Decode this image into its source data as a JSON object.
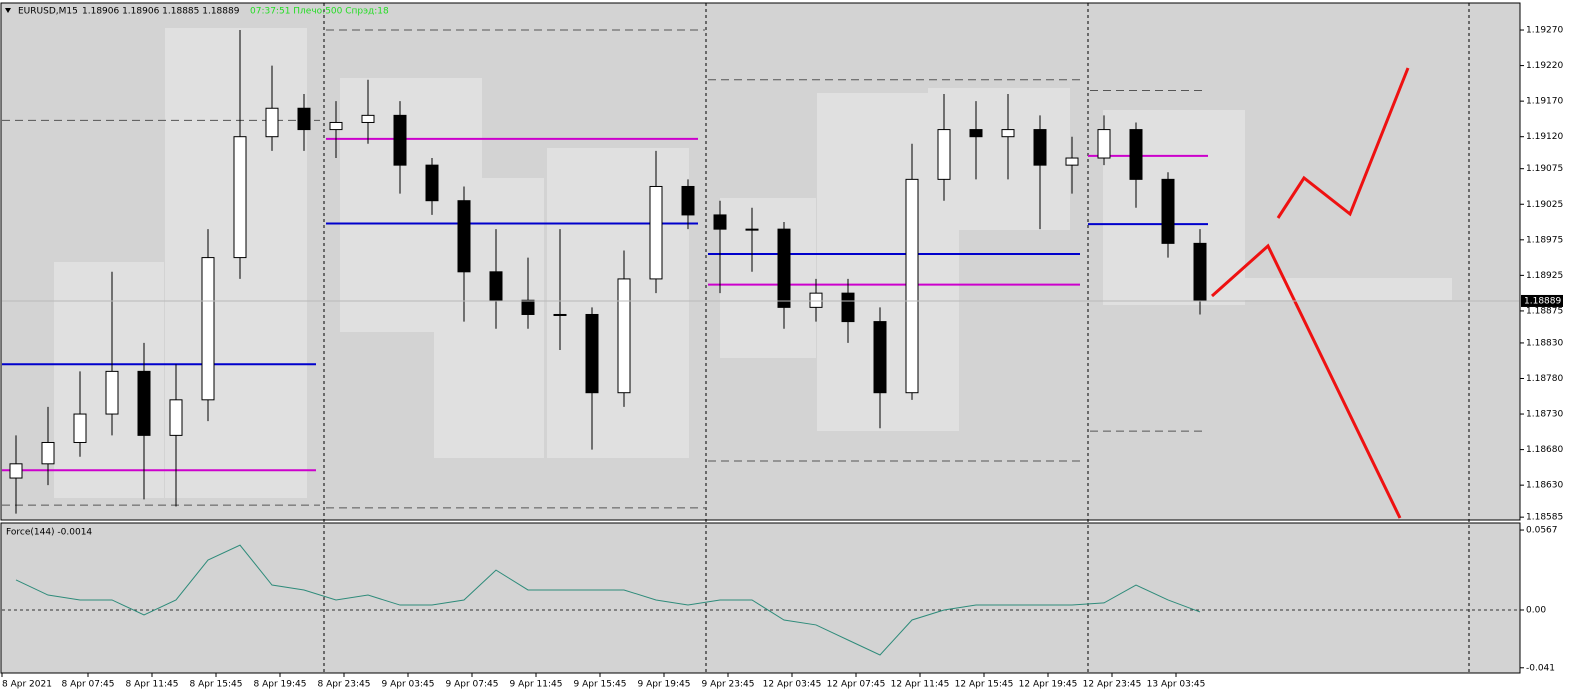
{
  "header": {
    "symbol": "EURUSD,M15",
    "quote": "1.18906 1.18906 1.18885 1.18889",
    "status": "07:37:51 Плечо:500 Спрэд:18"
  },
  "chart_data": [
    {
      "type": "candlestick",
      "open": [
        1.1864,
        1.1866,
        1.1869,
        1.1873,
        1.1879,
        1.187,
        1.1875,
        1.1895,
        1.1912,
        1.1916,
        1.1913,
        1.1914,
        1.1915,
        1.1908,
        1.1903,
        1.1893,
        1.1889,
        1.1887,
        1.1887,
        1.1876,
        1.1892,
        1.1905,
        1.1901,
        1.1899,
        1.1899,
        1.1888,
        1.189,
        1.1886,
        1.1876,
        1.1906,
        1.1913,
        1.1912,
        1.1913,
        1.1908,
        1.1909,
        1.1913,
        1.1906,
        1.1897
      ],
      "high": [
        1.187,
        1.1874,
        1.1879,
        1.1893,
        1.1883,
        1.188,
        1.1899,
        1.1927,
        1.1922,
        1.1918,
        1.1917,
        1.192,
        1.1917,
        1.1909,
        1.1905,
        1.1899,
        1.1895,
        1.1899,
        1.1888,
        1.1896,
        1.191,
        1.1906,
        1.1903,
        1.1902,
        1.19,
        1.1892,
        1.1892,
        1.1888,
        1.1911,
        1.1918,
        1.1917,
        1.1918,
        1.1915,
        1.1912,
        1.1915,
        1.1914,
        1.1907,
        1.1899
      ],
      "low": [
        1.1859,
        1.1863,
        1.1867,
        1.187,
        1.1861,
        1.186,
        1.1872,
        1.1892,
        1.191,
        1.191,
        1.1909,
        1.1911,
        1.1904,
        1.1901,
        1.1886,
        1.1885,
        1.1885,
        1.1882,
        1.1868,
        1.1874,
        1.189,
        1.1899,
        1.189,
        1.1893,
        1.1885,
        1.1886,
        1.1883,
        1.1871,
        1.1875,
        1.1903,
        1.1906,
        1.1906,
        1.1899,
        1.1904,
        1.1908,
        1.1902,
        1.1895,
        1.1887
      ],
      "close": [
        1.1866,
        1.1869,
        1.1873,
        1.1879,
        1.187,
        1.1875,
        1.1895,
        1.1912,
        1.1916,
        1.1913,
        1.1914,
        1.1915,
        1.1908,
        1.1903,
        1.1893,
        1.1889,
        1.1887,
        1.1887,
        1.1876,
        1.1892,
        1.1905,
        1.1901,
        1.1899,
        1.1899,
        1.1888,
        1.189,
        1.1886,
        1.1876,
        1.1906,
        1.1913,
        1.1912,
        1.1913,
        1.1908,
        1.1909,
        1.1913,
        1.1906,
        1.1897,
        1.18889
      ],
      "ylim": [
        1.18581,
        1.19308
      ],
      "yticks": [
        {
          "value": 1.1927,
          "label": "1.19270"
        },
        {
          "value": 1.1922,
          "label": "1.19220"
        },
        {
          "value": 1.1917,
          "label": "1.19170"
        },
        {
          "value": 1.1912,
          "label": "1.19120"
        },
        1.19075,
        {
          "value": 1.19025,
          "label": "1.19025"
        },
        1.18975,
        1.18925,
        1.18875,
        {
          "value": 1.1883,
          "label": "1.18830"
        },
        {
          "value": 1.1878,
          "label": "1.18780"
        },
        {
          "value": 1.1873,
          "label": "1.18730"
        },
        {
          "value": 1.1868,
          "label": "1.18680"
        },
        {
          "value": 1.1863,
          "label": "1.18630"
        },
        1.18585
      ],
      "xticks": [
        "8 Apr 2021",
        "8 Apr 07:45",
        "8 Apr 11:45",
        "8 Apr 15:45",
        "8 Apr 19:45",
        "8 Apr 23:45",
        "9 Apr 03:45",
        "9 Apr 07:45",
        "9 Apr 11:45",
        "9 Apr 15:45",
        "9 Apr 19:45",
        "9 Apr 23:45",
        "12 Apr 03:45",
        "12 Apr 07:45",
        "12 Apr 11:45",
        "12 Apr 15:45",
        "12 Apr 19:45",
        "12 Apr 23:45",
        "13 Apr 03:45"
      ],
      "levels": [
        {
          "price": 1.19143,
          "color": "#555555",
          "style": "dashed"
        },
        {
          "price": 1.188,
          "color": "#0000cc",
          "style": "solid"
        },
        {
          "price": 1.18651,
          "color": "#cc00cc",
          "style": "solid"
        },
        {
          "price": 1.18602,
          "color": "#555555",
          "style": "dashed"
        },
        {
          "price": 1.1927,
          "color": "#555555",
          "style": "dashed"
        },
        {
          "price": 1.19117,
          "color": "#cc00cc",
          "style": "solid"
        },
        {
          "price": 1.18998,
          "color": "#0000cc",
          "style": "solid"
        },
        {
          "price": 1.18598,
          "color": "#555555",
          "style": "dashed"
        },
        {
          "price": 1.192,
          "color": "#555555",
          "style": "dashed"
        },
        {
          "price": 1.18955,
          "color": "#0000cc",
          "style": "solid"
        },
        {
          "price": 1.18912,
          "color": "#cc00cc",
          "style": "solid"
        },
        {
          "price": 1.18664,
          "color": "#555555",
          "style": "dashed"
        },
        {
          "price": 1.19185,
          "color": "#555555",
          "style": "dashed"
        },
        {
          "price": 1.19093,
          "color": "#cc00cc",
          "style": "solid"
        },
        {
          "price": 1.18997,
          "color": "#0000cc",
          "style": "solid"
        },
        {
          "price": 1.18706,
          "color": "#555555",
          "style": "dashed"
        }
      ]
    },
    {
      "type": "line",
      "title": "Force(144) -0.0014",
      "color": "#2e8b7a",
      "values": [
        0.0213,
        0.0106,
        0.0071,
        0.0071,
        -0.0035,
        0.0071,
        0.0354,
        0.046,
        0.0177,
        0.0142,
        0.0071,
        0.0106,
        0.0035,
        0.0035,
        0.0071,
        0.0283,
        0.0142,
        0.0142,
        0.0142,
        0.0142,
        0.0071,
        0.0035,
        0.0071,
        0.0071,
        -0.0071,
        -0.0106,
        -0.0213,
        -0.0319,
        -0.0071,
        0,
        0.0035,
        0.0035,
        0.0035,
        0.0035,
        0.005,
        0.0177,
        0.0071,
        -0.0014
      ],
      "ylim": [
        -0.0447,
        0.0617
      ],
      "yticks": [
        0.0567,
        {
          "value": 0,
          "label": "0.00"
        },
        -0.041
      ]
    }
  ]
}
